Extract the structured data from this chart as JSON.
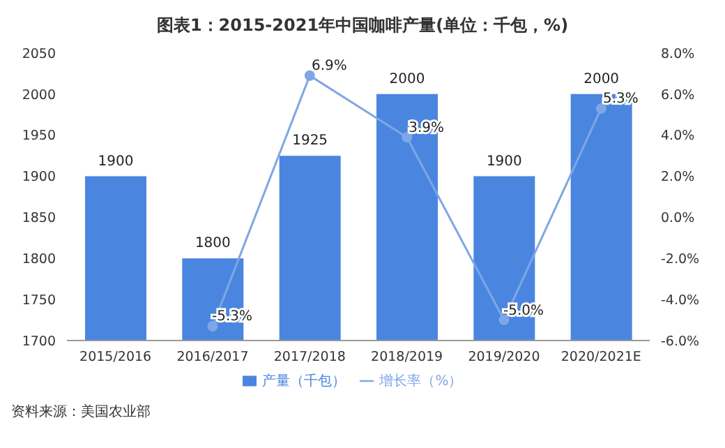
{
  "chart_data": {
    "type": "bar",
    "title": "图表1：2015-2021年中国咖啡产量(单位：千包，%)",
    "categories": [
      "2015/2016",
      "2016/2017",
      "2017/2018",
      "2018/2019",
      "2019/2020",
      "2020/2021E"
    ],
    "series": [
      {
        "name": "产量（千包）",
        "color": "#4a86e0",
        "values": [
          1900,
          1800,
          1925,
          2000,
          1900,
          2000
        ],
        "value_labels": [
          "1900",
          "1800",
          "1925",
          "2000",
          "1900",
          "2000"
        ]
      },
      {
        "name": "增长率（%）",
        "type": "line",
        "axis": "y2",
        "color": "#7fa6e6",
        "values": [
          null,
          -5.3,
          6.9,
          3.9,
          -5.0,
          5.3
        ],
        "value_labels": [
          null,
          "-5.3%",
          "6.9%",
          "3.9%",
          "-5.0%",
          "5.3%"
        ]
      }
    ],
    "ylim": [
      1700,
      2050
    ],
    "yticks": [
      1700,
      1750,
      1800,
      1850,
      1900,
      1950,
      2000,
      2050
    ],
    "y2lim": [
      -6,
      8
    ],
    "y2ticks": [
      {
        "value": -6,
        "label": "-6.0%"
      },
      {
        "value": -4,
        "label": "-4.0%"
      },
      {
        "value": -2,
        "label": "-2.0%"
      },
      {
        "value": 0,
        "label": "0.0%"
      },
      {
        "value": 2,
        "label": "2.0%"
      },
      {
        "value": 4,
        "label": "4.0%"
      },
      {
        "value": 6,
        "label": "6.0%"
      },
      {
        "value": 8,
        "label": "8.0%"
      }
    ],
    "marker": "circle",
    "legend": "bottom",
    "grid": false,
    "annotations": [
      "资料来源：美国农业部"
    ]
  }
}
